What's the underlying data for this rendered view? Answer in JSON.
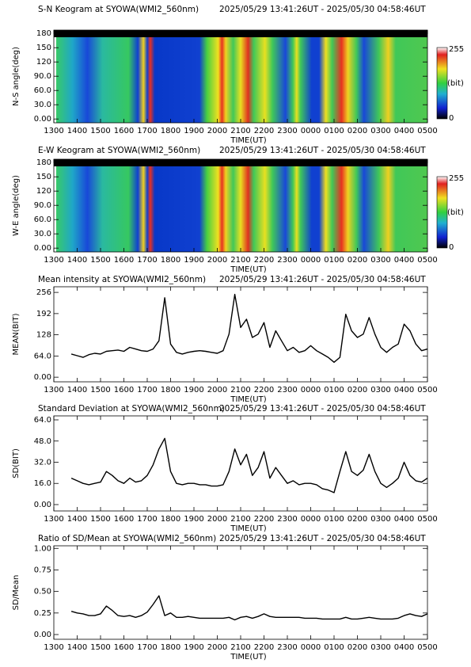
{
  "chart_data": [
    {
      "type": "keogram",
      "title": "S-N Keogram at SYOWA(WMI2_560nm)",
      "subtitle": "2025/05/29 13:41:26UT - 2025/05/30 04:58:46UT",
      "xlabel": "TIME(UT)",
      "ylabel": "N-S angle(deg)",
      "xlim": [
        13,
        29
      ],
      "xticks": [
        {
          "value": 13,
          "label": "1300"
        },
        {
          "value": 14,
          "label": "1400"
        },
        {
          "value": 15,
          "label": "1500"
        },
        {
          "value": 16,
          "label": "1600"
        },
        {
          "value": 17,
          "label": "1700"
        },
        {
          "value": 18,
          "label": "1800"
        },
        {
          "value": 19,
          "label": "1900"
        },
        {
          "value": 20,
          "label": "2000"
        },
        {
          "value": 21,
          "label": "2100"
        },
        {
          "value": 22,
          "label": "2200"
        },
        {
          "value": 23,
          "label": "2300"
        },
        {
          "value": 24,
          "label": "0000"
        },
        {
          "value": 25,
          "label": "0100"
        },
        {
          "value": 26,
          "label": "0200"
        },
        {
          "value": 27,
          "label": "0300"
        },
        {
          "value": 28,
          "label": "0400"
        },
        {
          "value": 29,
          "label": "0500"
        }
      ],
      "ylim": [
        -8,
        187
      ],
      "yticks": [
        {
          "value": 0,
          "label": "0.00"
        },
        {
          "value": 30,
          "label": "30.0"
        },
        {
          "value": 60,
          "label": "60.0"
        },
        {
          "value": 90,
          "label": "90.0"
        },
        120,
        150,
        180
      ],
      "clim": [
        0,
        255
      ],
      "cunit": "(bit)"
    },
    {
      "type": "keogram",
      "title": "E-W Keogram at SYOWA(WMI2_560nm)",
      "subtitle": "2025/05/29 13:41:26UT - 2025/05/30 04:58:46UT",
      "xlabel": "TIME(UT)",
      "ylabel": "W-E angle(deg)",
      "xlim": [
        13,
        29
      ],
      "xticks": [
        {
          "value": 13,
          "label": "1300"
        },
        {
          "value": 14,
          "label": "1400"
        },
        {
          "value": 15,
          "label": "1500"
        },
        {
          "value": 16,
          "label": "1600"
        },
        {
          "value": 17,
          "label": "1700"
        },
        {
          "value": 18,
          "label": "1800"
        },
        {
          "value": 19,
          "label": "1900"
        },
        {
          "value": 20,
          "label": "2000"
        },
        {
          "value": 21,
          "label": "2100"
        },
        {
          "value": 22,
          "label": "2200"
        },
        {
          "value": 23,
          "label": "2300"
        },
        {
          "value": 24,
          "label": "0000"
        },
        {
          "value": 25,
          "label": "0100"
        },
        {
          "value": 26,
          "label": "0200"
        },
        {
          "value": 27,
          "label": "0300"
        },
        {
          "value": 28,
          "label": "0400"
        },
        {
          "value": 29,
          "label": "0500"
        }
      ],
      "ylim": [
        -8,
        187
      ],
      "yticks": [
        {
          "value": 0,
          "label": "0.00"
        },
        {
          "value": 30,
          "label": "30.0"
        },
        {
          "value": 60,
          "label": "60.0"
        },
        {
          "value": 90,
          "label": "90.0"
        },
        120,
        150,
        180
      ],
      "clim": [
        0,
        255
      ],
      "cunit": "(bit)"
    },
    {
      "type": "line",
      "title": "Mean intensity at SYOWA(WMI2_560nm)",
      "subtitle": "2025/05/29 13:41:26UT - 2025/05/30 04:58:46UT",
      "xlabel": "TIME(UT)",
      "ylabel": "MEAN(BIT)",
      "color": "#000000",
      "xlim": [
        13,
        29
      ],
      "xticks": [
        {
          "value": 13,
          "label": "1300"
        },
        {
          "value": 14,
          "label": "1400"
        },
        {
          "value": 15,
          "label": "1500"
        },
        {
          "value": 16,
          "label": "1600"
        },
        {
          "value": 17,
          "label": "1700"
        },
        {
          "value": 18,
          "label": "1800"
        },
        {
          "value": 19,
          "label": "1900"
        },
        {
          "value": 20,
          "label": "2000"
        },
        {
          "value": 21,
          "label": "2100"
        },
        {
          "value": 22,
          "label": "2200"
        },
        {
          "value": 23,
          "label": "2300"
        },
        {
          "value": 24,
          "label": "0000"
        },
        {
          "value": 25,
          "label": "0100"
        },
        {
          "value": 26,
          "label": "0200"
        },
        {
          "value": 27,
          "label": "0300"
        },
        {
          "value": 28,
          "label": "0400"
        },
        {
          "value": 29,
          "label": "0500"
        }
      ],
      "ylim": [
        -14,
        273
      ],
      "yticks": [
        {
          "value": 0,
          "label": "0.00"
        },
        {
          "value": 64,
          "label": "64.0"
        },
        128,
        192,
        256
      ],
      "x": [
        13.75,
        14,
        14.25,
        14.5,
        14.75,
        15,
        15.25,
        15.5,
        15.75,
        16,
        16.25,
        16.5,
        16.75,
        17,
        17.25,
        17.5,
        17.75,
        18,
        18.25,
        18.5,
        18.75,
        19,
        19.25,
        19.5,
        19.75,
        20,
        20.25,
        20.5,
        20.75,
        21,
        21.25,
        21.5,
        21.75,
        22,
        22.25,
        22.5,
        22.75,
        23,
        23.25,
        23.5,
        23.75,
        24,
        24.25,
        24.5,
        24.75,
        25,
        25.25,
        25.5,
        25.75,
        26,
        26.25,
        26.5,
        26.75,
        27,
        27.25,
        27.5,
        27.75,
        28,
        28.25,
        28.5,
        28.75,
        29
      ],
      "values": [
        70,
        65,
        60,
        68,
        72,
        70,
        78,
        80,
        82,
        78,
        90,
        85,
        80,
        78,
        85,
        110,
        240,
        100,
        75,
        70,
        75,
        78,
        80,
        78,
        75,
        72,
        80,
        130,
        250,
        150,
        175,
        120,
        130,
        165,
        90,
        140,
        110,
        80,
        90,
        75,
        80,
        95,
        80,
        70,
        60,
        45,
        60,
        190,
        140,
        120,
        130,
        180,
        130,
        90,
        75,
        90,
        100,
        160,
        140,
        100,
        80,
        85
      ]
    },
    {
      "type": "line",
      "title": "Standard Deviation at SYOWA(WMI2_560nm)",
      "subtitle": "2025/05/29 13:41:26UT - 2025/05/30 04:58:46UT",
      "xlabel": "TIME(UT)",
      "ylabel": "SD(BIT)",
      "color": "#000000",
      "xlim": [
        13,
        29
      ],
      "xticks": [
        {
          "value": 13,
          "label": "1300"
        },
        {
          "value": 14,
          "label": "1400"
        },
        {
          "value": 15,
          "label": "1500"
        },
        {
          "value": 16,
          "label": "1600"
        },
        {
          "value": 17,
          "label": "1700"
        },
        {
          "value": 18,
          "label": "1800"
        },
        {
          "value": 19,
          "label": "1900"
        },
        {
          "value": 20,
          "label": "2000"
        },
        {
          "value": 21,
          "label": "2100"
        },
        {
          "value": 22,
          "label": "2200"
        },
        {
          "value": 23,
          "label": "2300"
        },
        {
          "value": 24,
          "label": "0000"
        },
        {
          "value": 25,
          "label": "0100"
        },
        {
          "value": 26,
          "label": "0200"
        },
        {
          "value": 27,
          "label": "0300"
        },
        {
          "value": 28,
          "label": "0400"
        },
        {
          "value": 29,
          "label": "0500"
        }
      ],
      "ylim": [
        -4.8,
        67
      ],
      "yticks": [
        {
          "value": 0,
          "label": "0.00"
        },
        {
          "value": 16,
          "label": "16.0"
        },
        {
          "value": 32,
          "label": "32.0"
        },
        {
          "value": 48,
          "label": "48.0"
        },
        {
          "value": 64,
          "label": "64.0"
        }
      ],
      "x": [
        13.75,
        14,
        14.25,
        14.5,
        14.75,
        15,
        15.25,
        15.5,
        15.75,
        16,
        16.25,
        16.5,
        16.75,
        17,
        17.25,
        17.5,
        17.75,
        18,
        18.25,
        18.5,
        18.75,
        19,
        19.25,
        19.5,
        19.75,
        20,
        20.25,
        20.5,
        20.75,
        21,
        21.25,
        21.5,
        21.75,
        22,
        22.25,
        22.5,
        22.75,
        23,
        23.25,
        23.5,
        23.75,
        24,
        24.25,
        24.5,
        24.75,
        25,
        25.25,
        25.5,
        25.75,
        26,
        26.25,
        26.5,
        26.75,
        27,
        27.25,
        27.5,
        27.75,
        28,
        28.25,
        28.5,
        28.75,
        29
      ],
      "values": [
        20,
        18,
        16,
        15,
        16,
        17,
        25,
        22,
        18,
        16,
        20,
        17,
        18,
        22,
        30,
        42,
        50,
        25,
        16,
        15,
        16,
        16,
        15,
        15,
        14,
        14,
        15,
        25,
        42,
        30,
        38,
        22,
        28,
        40,
        20,
        28,
        22,
        16,
        18,
        15,
        16,
        16,
        15,
        12,
        11,
        9,
        25,
        40,
        25,
        22,
        26,
        38,
        25,
        16,
        13,
        16,
        20,
        32,
        22,
        18,
        17,
        20
      ]
    },
    {
      "type": "line",
      "title": "Ratio of SD/Mean at SYOWA(WMI2_560nm)",
      "subtitle": "2025/05/29 13:41:26UT - 2025/05/30 04:58:46UT",
      "xlabel": "TIME(UT)",
      "ylabel": "SD/Mean",
      "color": "#000000",
      "xlim": [
        13,
        29
      ],
      "xticks": [
        {
          "value": 13,
          "label": "1300"
        },
        {
          "value": 14,
          "label": "1400"
        },
        {
          "value": 15,
          "label": "1500"
        },
        {
          "value": 16,
          "label": "1600"
        },
        {
          "value": 17,
          "label": "1700"
        },
        {
          "value": 18,
          "label": "1800"
        },
        {
          "value": 19,
          "label": "1900"
        },
        {
          "value": 20,
          "label": "2000"
        },
        {
          "value": 21,
          "label": "2100"
        },
        {
          "value": 22,
          "label": "2200"
        },
        {
          "value": 23,
          "label": "2300"
        },
        {
          "value": 24,
          "label": "0000"
        },
        {
          "value": 25,
          "label": "0100"
        },
        {
          "value": 26,
          "label": "0200"
        },
        {
          "value": 27,
          "label": "0300"
        },
        {
          "value": 28,
          "label": "0400"
        },
        {
          "value": 29,
          "label": "0500"
        }
      ],
      "ylim": [
        -0.055,
        1.03
      ],
      "yticks": [
        {
          "value": 0,
          "label": "0.00"
        },
        0.25,
        {
          "value": 0.5,
          "label": "0.50"
        },
        0.75,
        {
          "value": 1,
          "label": "1.00"
        }
      ],
      "x": [
        13.75,
        14,
        14.25,
        14.5,
        14.75,
        15,
        15.25,
        15.5,
        15.75,
        16,
        16.25,
        16.5,
        16.75,
        17,
        17.25,
        17.5,
        17.75,
        18,
        18.25,
        18.5,
        18.75,
        19,
        19.25,
        19.5,
        19.75,
        20,
        20.25,
        20.5,
        20.75,
        21,
        21.25,
        21.5,
        21.75,
        22,
        22.25,
        22.5,
        22.75,
        23,
        23.25,
        23.5,
        23.75,
        24,
        24.25,
        24.5,
        24.75,
        25,
        25.25,
        25.5,
        25.75,
        26,
        26.25,
        26.5,
        26.75,
        27,
        27.25,
        27.5,
        27.75,
        28,
        28.25,
        28.5,
        28.75,
        29
      ],
      "values": [
        0.27,
        0.25,
        0.24,
        0.22,
        0.22,
        0.24,
        0.33,
        0.28,
        0.22,
        0.21,
        0.22,
        0.2,
        0.22,
        0.26,
        0.35,
        0.45,
        0.22,
        0.25,
        0.2,
        0.2,
        0.21,
        0.2,
        0.19,
        0.19,
        0.19,
        0.19,
        0.19,
        0.2,
        0.17,
        0.2,
        0.21,
        0.19,
        0.21,
        0.24,
        0.21,
        0.2,
        0.2,
        0.2,
        0.2,
        0.2,
        0.19,
        0.19,
        0.19,
        0.18,
        0.18,
        0.18,
        0.18,
        0.2,
        0.18,
        0.18,
        0.19,
        0.2,
        0.19,
        0.18,
        0.18,
        0.18,
        0.19,
        0.22,
        0.24,
        0.22,
        0.21,
        0.24
      ]
    }
  ]
}
